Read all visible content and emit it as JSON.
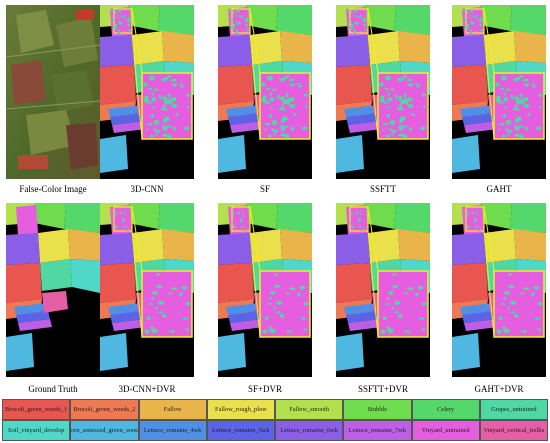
{
  "figure": {
    "row1": [
      {
        "caption": "False-Color Image",
        "type": "false-color"
      },
      {
        "caption": "3D-CNN",
        "type": "classmap"
      },
      {
        "caption": "SF",
        "type": "classmap"
      },
      {
        "caption": "SSFTT",
        "type": "classmap"
      },
      {
        "caption": "GAHT",
        "type": "classmap"
      }
    ],
    "row2": [
      {
        "caption": "Ground Truth",
        "type": "groundtruth"
      },
      {
        "caption": "3D-CNN+DVR",
        "type": "classmap"
      },
      {
        "caption": "SF+DVR",
        "type": "classmap"
      },
      {
        "caption": "SSFTT+DVR",
        "type": "classmap"
      },
      {
        "caption": "GAHT+DVR",
        "type": "classmap"
      }
    ]
  },
  "legend": [
    {
      "label": "Brocoli_green_weeds_1",
      "color": "#e8564f"
    },
    {
      "label": "Brocoli_green_weeds_2",
      "color": "#ef7a52"
    },
    {
      "label": "Fallow",
      "color": "#e9b54a"
    },
    {
      "label": "Fallow_rough_plow",
      "color": "#e9e04c"
    },
    {
      "label": "Fallow_smooth",
      "color": "#b5e04e"
    },
    {
      "label": "Stubble",
      "color": "#6fdc4e"
    },
    {
      "label": "Celery",
      "color": "#54d86a"
    },
    {
      "label": "Grapes_untrained",
      "color": "#4fd8a2"
    },
    {
      "label": "Soil_vinyard_develop",
      "color": "#4fd8c8"
    },
    {
      "label": "Corn_senesced_green_weeds",
      "color": "#4fb8e0"
    },
    {
      "label": "Lettuce_romaine_4wk",
      "color": "#4f8fe6"
    },
    {
      "label": "Lettuce_romaine_5wk",
      "color": "#5b63e6"
    },
    {
      "label": "Lettuce_romaine_6wk",
      "color": "#8a5ee6"
    },
    {
      "label": "Lettuce_romaine_7wk",
      "color": "#bd5ee6"
    },
    {
      "label": "Vinyard_untrained",
      "color": "#e65ee0"
    },
    {
      "label": "Vinyard_vertical_trellis",
      "color": "#e65ea6"
    }
  ]
}
